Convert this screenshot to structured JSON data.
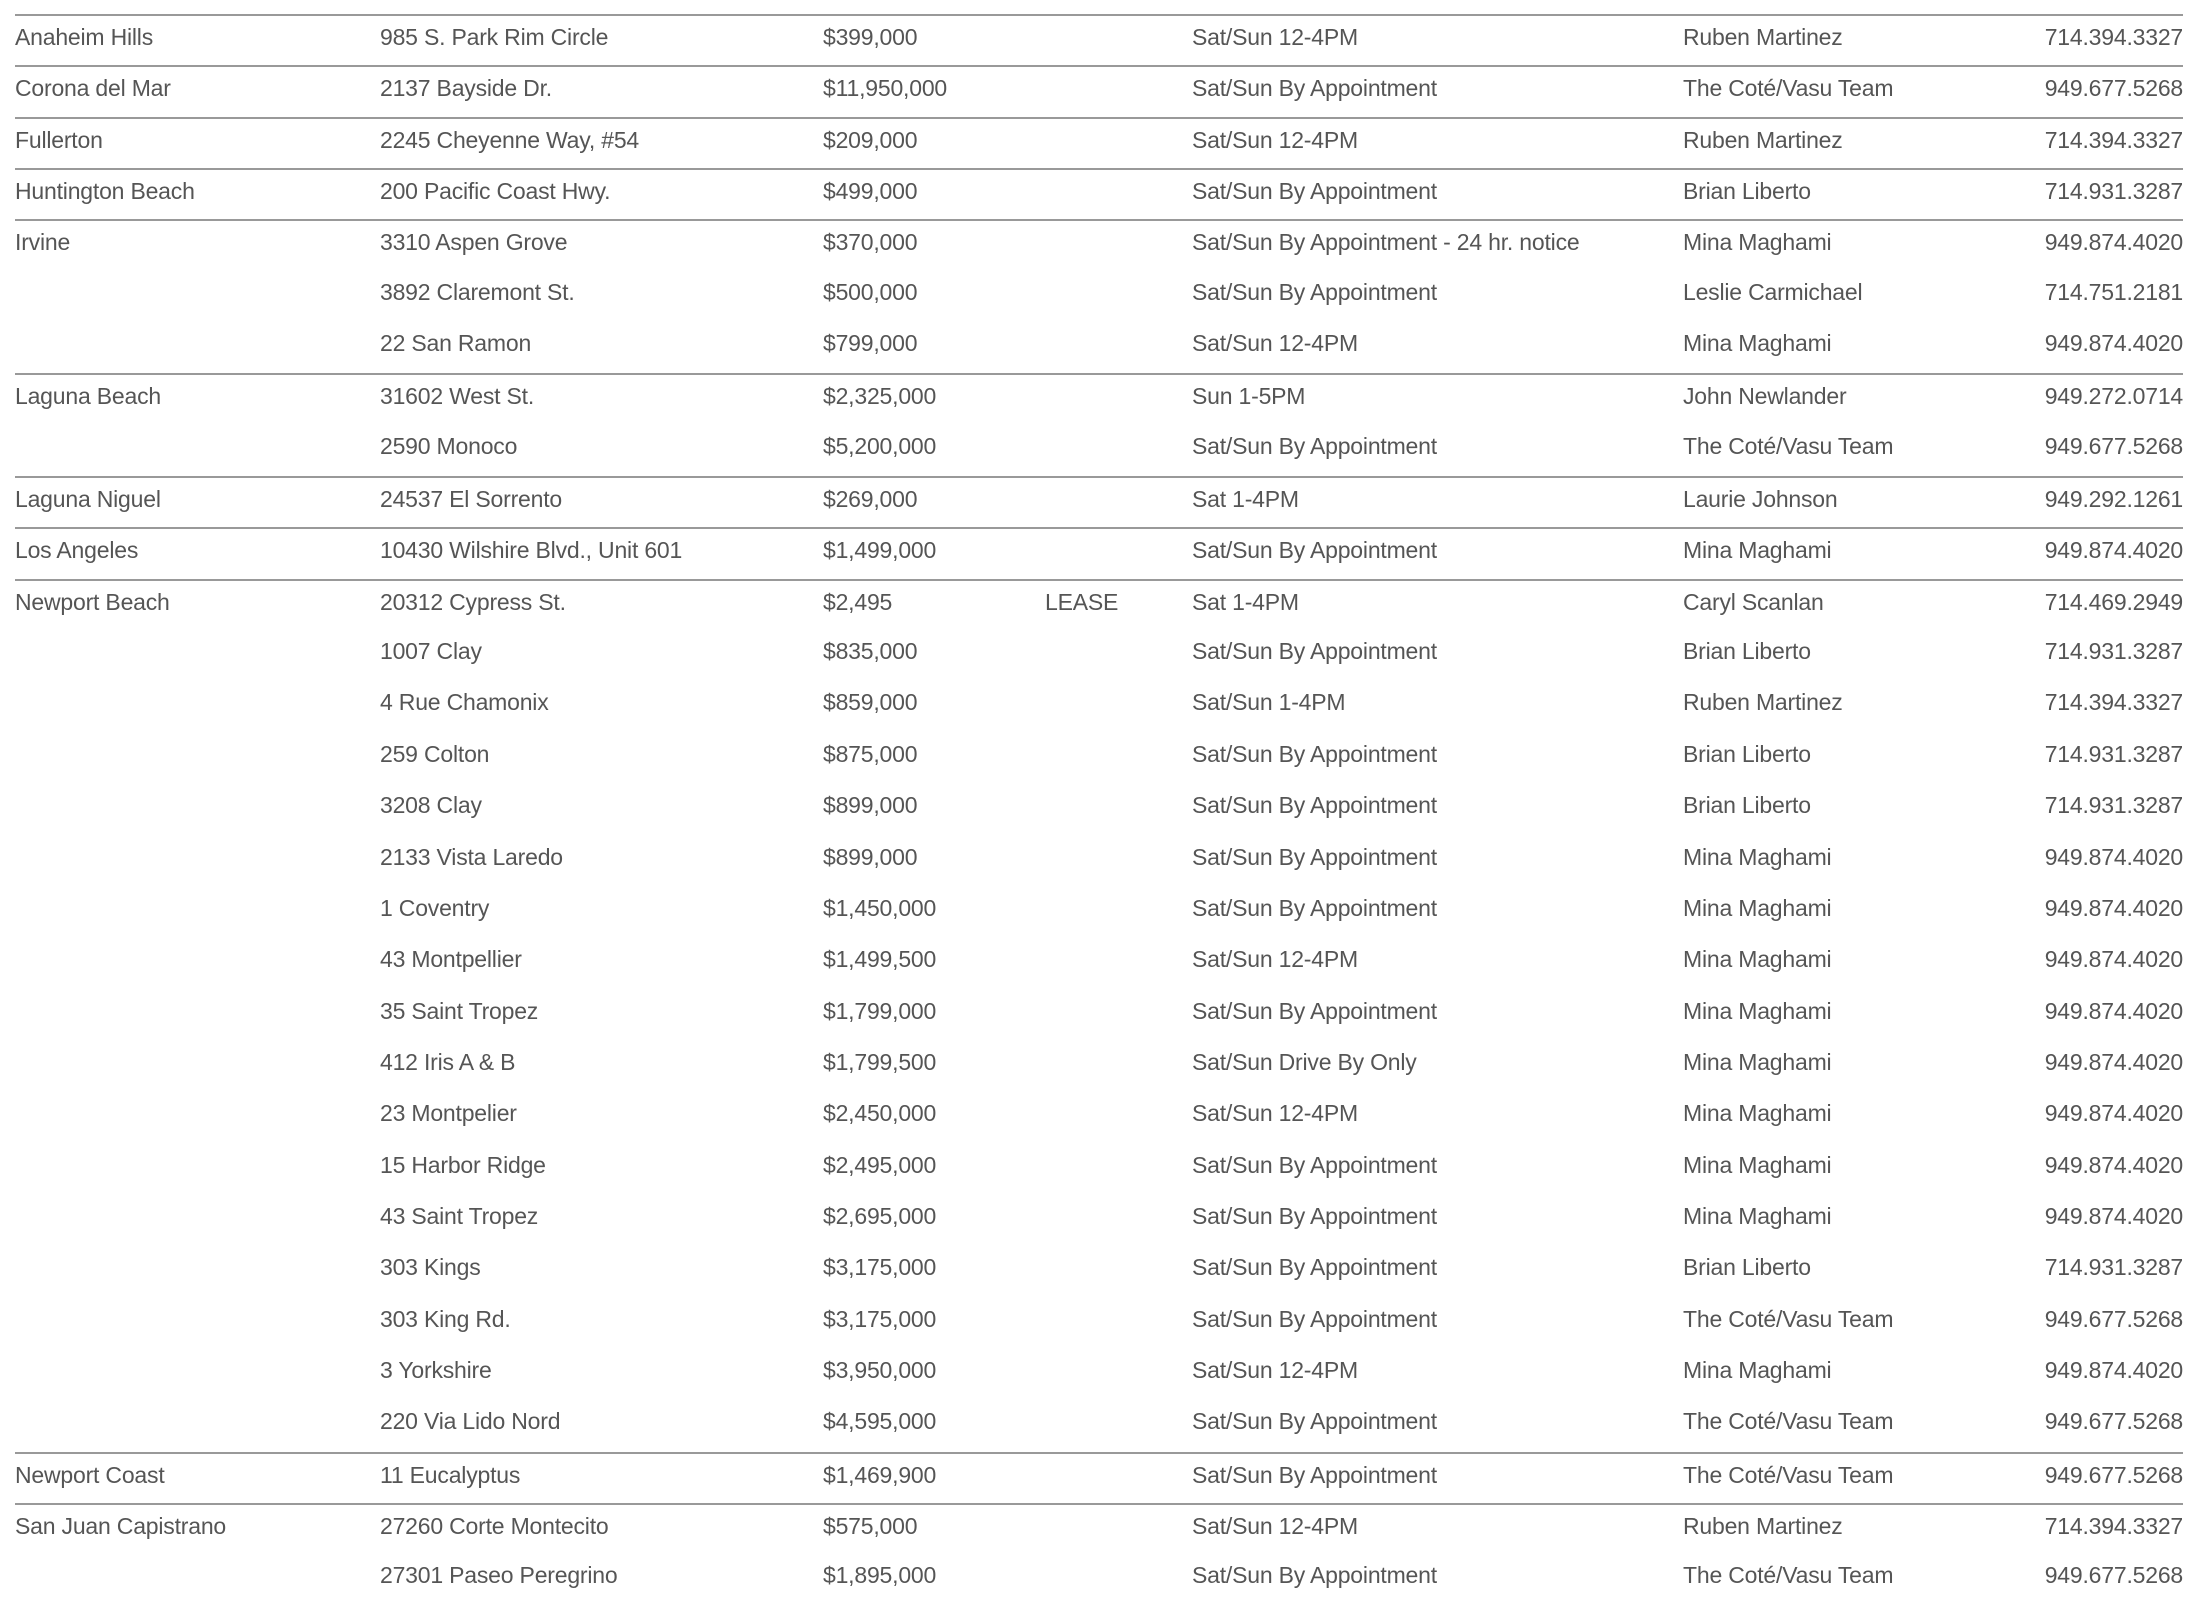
{
  "listings": [
    {
      "city": "Anaheim Hills",
      "address": "985 S. Park Rim Circle",
      "price": "$399,000",
      "note": "",
      "open_house": "Sat/Sun 12-4PM",
      "agent": "Ruben Martinez",
      "phone": "714.394.3327"
    },
    {
      "city": "Corona del Mar",
      "address": "2137 Bayside Dr.",
      "price": "$11,950,000",
      "note": "",
      "open_house": "Sat/Sun By Appointment",
      "agent": "The Coté/Vasu Team",
      "phone": "949.677.5268"
    },
    {
      "city": "Fullerton",
      "address": "2245 Cheyenne Way, #54",
      "price": "$209,000",
      "note": "",
      "open_house": "Sat/Sun 12-4PM",
      "agent": "Ruben Martinez",
      "phone": "714.394.3327"
    },
    {
      "city": "Huntington Beach",
      "address": "200 Pacific Coast Hwy.",
      "price": "$499,000",
      "note": "",
      "open_house": "Sat/Sun By Appointment",
      "agent": "Brian Liberto",
      "phone": "714.931.3287"
    },
    {
      "city": "Irvine",
      "address": "3310 Aspen Grove",
      "price": "$370,000",
      "note": "",
      "open_house": "Sat/Sun By Appointment - 24 hr. notice",
      "agent": "Mina Maghami",
      "phone": "949.874.4020"
    },
    {
      "city": "",
      "address": "3892 Claremont St.",
      "price": "$500,000",
      "note": "",
      "open_house": "Sat/Sun By Appointment",
      "agent": "Leslie Carmichael",
      "phone": "714.751.2181"
    },
    {
      "city": "",
      "address": "22 San Ramon",
      "price": "$799,000",
      "note": "",
      "open_house": "Sat/Sun 12-4PM",
      "agent": "Mina Maghami",
      "phone": "949.874.4020"
    },
    {
      "city": "Laguna Beach",
      "address": "31602 West St.",
      "price": "$2,325,000",
      "note": "",
      "open_house": "Sun 1-5PM",
      "agent": "John Newlander",
      "phone": "949.272.0714"
    },
    {
      "city": "",
      "address": "2590 Monoco",
      "price": "$5,200,000",
      "note": "",
      "open_house": "Sat/Sun By Appointment",
      "agent": "The Coté/Vasu Team",
      "phone": "949.677.5268"
    },
    {
      "city": "Laguna Niguel",
      "address": "24537 El Sorrento",
      "price": "$269,000",
      "note": "",
      "open_house": "Sat 1-4PM",
      "agent": "Laurie Johnson",
      "phone": "949.292.1261"
    },
    {
      "city": "Los Angeles",
      "address": "10430 Wilshire Blvd., Unit 601",
      "price": "$1,499,000",
      "note": "",
      "open_house": "Sat/Sun By Appointment",
      "agent": "Mina Maghami",
      "phone": "949.874.4020"
    },
    {
      "city": "Newport Beach",
      "address": "20312 Cypress St.",
      "price": "$2,495",
      "note": "LEASE",
      "open_house": "Sat 1-4PM",
      "agent": "Caryl Scanlan",
      "phone": "714.469.2949"
    },
    {
      "city": "",
      "address": "1007 Clay",
      "price": "$835,000",
      "note": "",
      "open_house": "Sat/Sun By Appointment",
      "agent": "Brian Liberto",
      "phone": "714.931.3287"
    },
    {
      "city": "",
      "address": "4 Rue Chamonix",
      "price": "$859,000",
      "note": "",
      "open_house": "Sat/Sun 1-4PM",
      "agent": "Ruben Martinez",
      "phone": "714.394.3327"
    },
    {
      "city": "",
      "address": "259 Colton",
      "price": "$875,000",
      "note": "",
      "open_house": "Sat/Sun By Appointment",
      "agent": "Brian Liberto",
      "phone": "714.931.3287"
    },
    {
      "city": "",
      "address": "3208 Clay",
      "price": "$899,000",
      "note": "",
      "open_house": "Sat/Sun By Appointment",
      "agent": "Brian Liberto",
      "phone": "714.931.3287"
    },
    {
      "city": "",
      "address": "2133 Vista Laredo",
      "price": "$899,000",
      "note": "",
      "open_house": "Sat/Sun By Appointment",
      "agent": "Mina Maghami",
      "phone": "949.874.4020"
    },
    {
      "city": "",
      "address": "1 Coventry",
      "price": "$1,450,000",
      "note": "",
      "open_house": "Sat/Sun By Appointment",
      "agent": "Mina Maghami",
      "phone": "949.874.4020"
    },
    {
      "city": "",
      "address": "43 Montpellier",
      "price": "$1,499,500",
      "note": "",
      "open_house": "Sat/Sun 12-4PM",
      "agent": "Mina Maghami",
      "phone": "949.874.4020"
    },
    {
      "city": "",
      "address": "35 Saint Tropez",
      "price": "$1,799,000",
      "note": "",
      "open_house": "Sat/Sun By Appointment",
      "agent": "Mina Maghami",
      "phone": "949.874.4020"
    },
    {
      "city": "",
      "address": "412 Iris A & B",
      "price": "$1,799,500",
      "note": "",
      "open_house": "Sat/Sun Drive By Only",
      "agent": "Mina Maghami",
      "phone": "949.874.4020"
    },
    {
      "city": "",
      "address": "23 Montpelier",
      "price": "$2,450,000",
      "note": "",
      "open_house": "Sat/Sun 12-4PM",
      "agent": "Mina Maghami",
      "phone": "949.874.4020"
    },
    {
      "city": "",
      "address": "15 Harbor Ridge",
      "price": "$2,495,000",
      "note": "",
      "open_house": "Sat/Sun By Appointment",
      "agent": "Mina Maghami",
      "phone": "949.874.4020"
    },
    {
      "city": "",
      "address": "43 Saint Tropez",
      "price": "$2,695,000",
      "note": "",
      "open_house": "Sat/Sun By Appointment",
      "agent": "Mina Maghami",
      "phone": "949.874.4020"
    },
    {
      "city": "",
      "address": "303  Kings",
      "price": "$3,175,000",
      "note": "",
      "open_house": "Sat/Sun By Appointment",
      "agent": "Brian Liberto",
      "phone": "714.931.3287"
    },
    {
      "city": "",
      "address": "303 King Rd.",
      "price": "$3,175,000",
      "note": "",
      "open_house": "Sat/Sun By Appointment",
      "agent": "The Coté/Vasu Team",
      "phone": "949.677.5268"
    },
    {
      "city": "",
      "address": "3 Yorkshire",
      "price": "$3,950,000",
      "note": "",
      "open_house": "Sat/Sun 12-4PM",
      "agent": "Mina Maghami",
      "phone": "949.874.4020"
    },
    {
      "city": "",
      "address": "220 Via Lido Nord",
      "price": "$4,595,000",
      "note": "",
      "open_house": "Sat/Sun By Appointment",
      "agent": "The Coté/Vasu Team",
      "phone": "949.677.5268"
    },
    {
      "city": "Newport Coast",
      "address": "11 Eucalyptus",
      "price": "$1,469,900",
      "note": "",
      "open_house": "Sat/Sun By Appointment",
      "agent": "The Coté/Vasu Team",
      "phone": "949.677.5268"
    },
    {
      "city": "San Juan Capistrano",
      "address": "27260 Corte Montecito",
      "price": "$575,000",
      "note": "",
      "open_house": "Sat/Sun 12-4PM",
      "agent": "Ruben Martinez",
      "phone": "714.394.3327"
    },
    {
      "city": "",
      "address": "27301 Paseo Peregrino",
      "price": "$1,895,000",
      "note": "",
      "open_house": "Sat/Sun By Appointment",
      "agent": "The Coté/Vasu Team",
      "phone": "949.677.5268"
    }
  ]
}
